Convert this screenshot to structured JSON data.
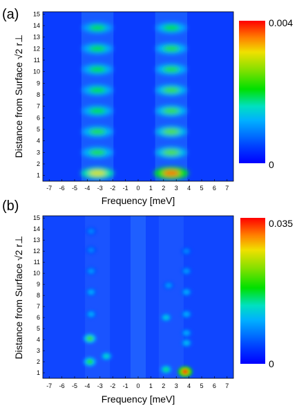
{
  "chart_data": [
    {
      "panel_label": "(a)",
      "type": "heatmap",
      "xlabel": "Frequency [meV]",
      "ylabel_prefix": "Distance from Surface ",
      "ylabel_sqrt": "√2",
      "ylabel_suffix": " r⊥",
      "x_ticks": [
        "-7",
        "-6",
        "-5",
        "-4",
        "-3",
        "-2",
        "-1",
        "0",
        "1",
        "2",
        "3",
        "4",
        "5",
        "6",
        "7"
      ],
      "y_ticks": [
        "1",
        "2",
        "3",
        "4",
        "5",
        "6",
        "7",
        "8",
        "9",
        "10",
        "11",
        "12",
        "13",
        "14",
        "15"
      ],
      "xlim": [
        -7.5,
        7.5
      ],
      "ylim": [
        0.5,
        15.2
      ],
      "colorbar": {
        "max_label": "0.004",
        "min_label": "0",
        "min": 0,
        "max": 0.004
      },
      "blobs": [
        {
          "x": -3.2,
          "y": 1.2,
          "value": 0.003
        },
        {
          "x": 2.6,
          "y": 1.2,
          "value": 0.0036
        },
        {
          "x": -3.2,
          "y": 3.0,
          "value": 0.0022
        },
        {
          "x": 2.6,
          "y": 3.0,
          "value": 0.0024
        },
        {
          "x": -3.2,
          "y": 4.8,
          "value": 0.0022
        },
        {
          "x": 2.6,
          "y": 4.8,
          "value": 0.0024
        },
        {
          "x": -3.2,
          "y": 6.6,
          "value": 0.0021
        },
        {
          "x": 2.6,
          "y": 6.6,
          "value": 0.0023
        },
        {
          "x": -3.2,
          "y": 8.4,
          "value": 0.0021
        },
        {
          "x": 2.6,
          "y": 8.4,
          "value": 0.0023
        },
        {
          "x": -3.2,
          "y": 10.2,
          "value": 0.0021
        },
        {
          "x": 2.6,
          "y": 10.2,
          "value": 0.0022
        },
        {
          "x": -3.2,
          "y": 12.0,
          "value": 0.0021
        },
        {
          "x": 2.6,
          "y": 12.0,
          "value": 0.0022
        },
        {
          "x": -3.2,
          "y": 13.8,
          "value": 0.002
        },
        {
          "x": 2.6,
          "y": 13.8,
          "value": 0.0021
        }
      ]
    },
    {
      "panel_label": "(b)",
      "type": "heatmap",
      "xlabel": "Frequency [meV]",
      "ylabel_prefix": "Distance from Surface ",
      "ylabel_sqrt": "√2",
      "ylabel_suffix": " r⊥",
      "x_ticks": [
        "-7",
        "-6",
        "-5",
        "-4",
        "-3",
        "-2",
        "-1",
        "0",
        "1",
        "2",
        "3",
        "4",
        "5",
        "6",
        "7"
      ],
      "y_ticks": [
        "1",
        "2",
        "3",
        "4",
        "5",
        "6",
        "7",
        "8",
        "9",
        "10",
        "11",
        "12",
        "13",
        "14",
        "15"
      ],
      "xlim": [
        -7.5,
        7.5
      ],
      "ylim": [
        0.5,
        15.2
      ],
      "colorbar": {
        "max_label": "0.035",
        "min_label": "0",
        "min": 0,
        "max": 0.035
      },
      "blobs": [
        {
          "x": 3.7,
          "y": 1.1,
          "value": 0.034
        },
        {
          "x": 2.2,
          "y": 1.3,
          "value": 0.015
        },
        {
          "x": -3.8,
          "y": 2.0,
          "value": 0.019
        },
        {
          "x": -2.5,
          "y": 2.5,
          "value": 0.013
        },
        {
          "x": -3.8,
          "y": 4.1,
          "value": 0.02
        },
        {
          "x": 3.8,
          "y": 3.7,
          "value": 0.011
        },
        {
          "x": 3.8,
          "y": 4.6,
          "value": 0.01
        },
        {
          "x": 2.2,
          "y": 6.0,
          "value": 0.012
        },
        {
          "x": 3.8,
          "y": 6.3,
          "value": 0.01
        },
        {
          "x": -3.7,
          "y": 6.3,
          "value": 0.01
        },
        {
          "x": -3.7,
          "y": 8.3,
          "value": 0.01
        },
        {
          "x": 3.8,
          "y": 8.3,
          "value": 0.01
        },
        {
          "x": 2.4,
          "y": 8.9,
          "value": 0.009
        },
        {
          "x": -3.7,
          "y": 10.2,
          "value": 0.009
        },
        {
          "x": 3.8,
          "y": 10.2,
          "value": 0.009
        },
        {
          "x": -3.7,
          "y": 12.1,
          "value": 0.008
        },
        {
          "x": 3.8,
          "y": 12.0,
          "value": 0.008
        },
        {
          "x": -3.7,
          "y": 13.8,
          "value": 0.008
        }
      ]
    }
  ]
}
